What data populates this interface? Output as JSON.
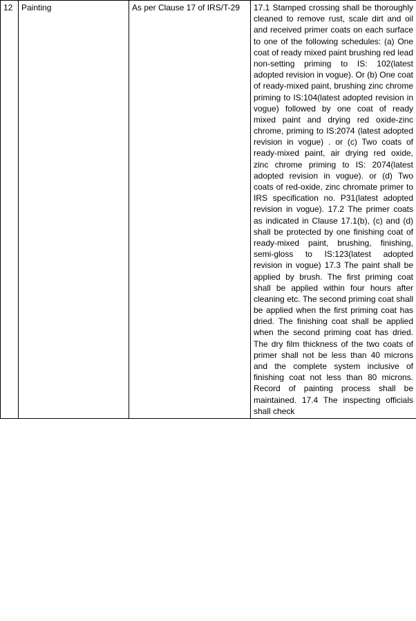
{
  "row": {
    "num": "12",
    "title": "Painting",
    "ref": "As per Clause 17 of IRS/T-29",
    "desc": "17.1 Stamped crossing shall be thoroughly cleaned to remove rust, scale dirt and oil and received primer coats on each surface to one of the following schedules:\n (a) One coat of ready mixed paint brushing red lead non-setting priming to IS: 102(latest adopted revision in vogue). Or\n (b) One coat of ready-mixed paint, brushing zinc chrome priming to IS:104(latest adopted revision in vogue) followed by one coat of ready mixed paint and drying red oxide-zinc chrome, priming to IS:2074 (latest adopted revision in vogue) . or (c) Two coats of ready-mixed paint, air drying red oxide, zinc chrome priming to IS: 2074(latest adopted revision in vogue). or (d) Two coats of red-oxide, zinc chromate primer to IRS specification no. P31(latest adopted revision in vogue). 17.2 The primer coats as indicated in Clause 17.1(b), (c) and (d) shall be protected by one finishing coat of ready-mixed paint, brushing, finishing, semi-gloss to IS:123(latest adopted revision in vogue) 17.3 The paint shall be applied by brush. The first priming coat shall be applied within four hours after cleaning etc. The second priming coat shall be applied when the first priming coat has dried. The finishing coat shall be applied when the second priming coat has dried. The dry film thickness of the two coats of primer shall not be less than 40 microns and the complete system inclusive of finishing coat not less than 80 microns. Record of painting process shall be maintained. 17.4 The inspecting officials shall check"
  }
}
